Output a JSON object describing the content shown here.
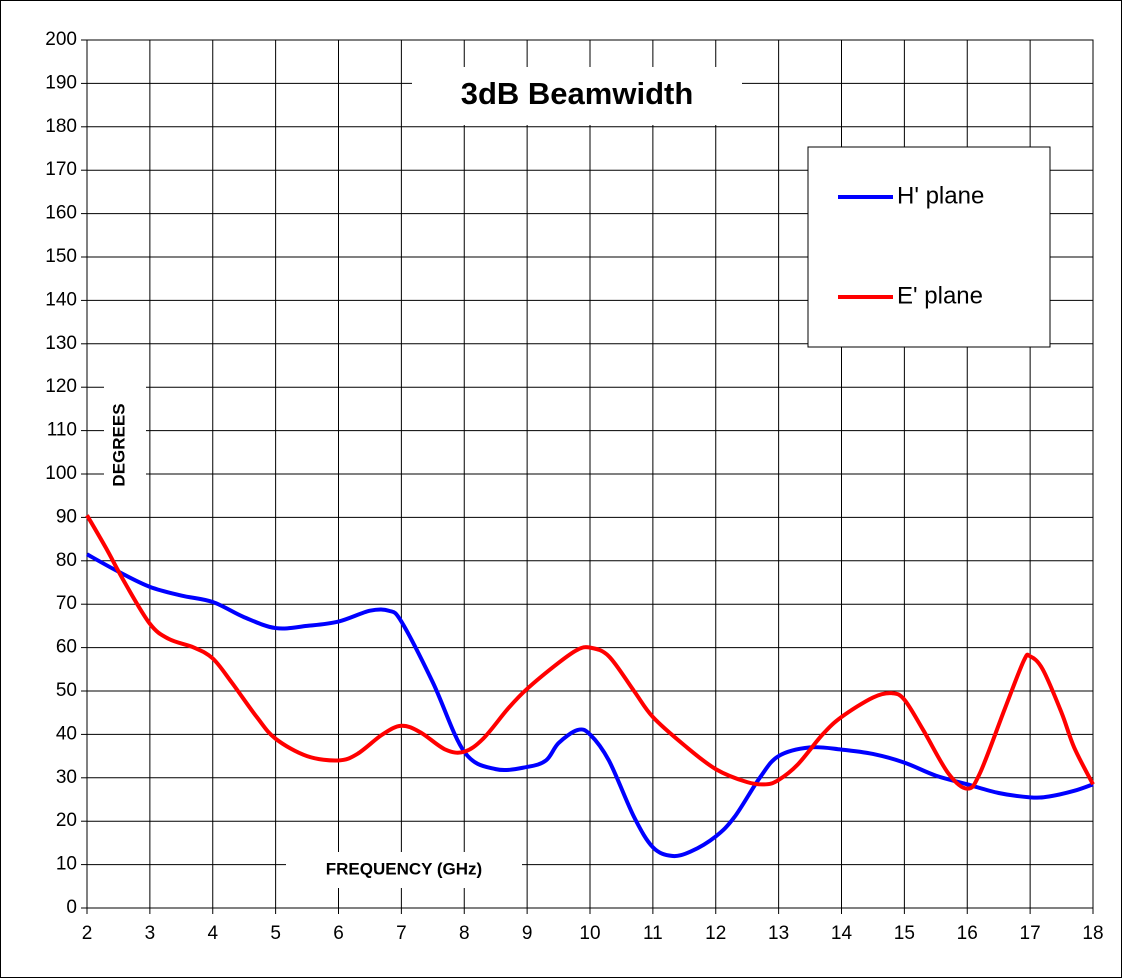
{
  "chart_data": {
    "type": "line",
    "title": "3dB Beamwidth",
    "x_label": "FREQUENCY (GHz)",
    "y_label": "DEGREES",
    "xlim": [
      2,
      18
    ],
    "ylim": [
      0,
      200
    ],
    "xticks": [
      2,
      3,
      4,
      5,
      6,
      7,
      8,
      9,
      10,
      11,
      12,
      13,
      14,
      15,
      16,
      17,
      18
    ],
    "yticks": [
      0,
      10,
      20,
      30,
      40,
      50,
      60,
      70,
      80,
      90,
      100,
      110,
      120,
      130,
      140,
      150,
      160,
      170,
      180,
      190,
      200
    ],
    "grid": true,
    "legend": "upper right",
    "series": [
      {
        "name": "H' plane",
        "color": "#0000ff",
        "x": [
          2,
          2.5,
          3,
          3.5,
          4,
          4.5,
          5,
          5.5,
          6,
          6.5,
          6.8,
          7,
          7.5,
          8,
          8.5,
          9,
          9.3,
          9.5,
          9.8,
          10,
          10.3,
          10.7,
          11,
          11.3,
          11.6,
          12,
          12.3,
          12.7,
          13,
          13.5,
          14,
          14.5,
          15,
          15.5,
          16,
          16.5,
          17,
          17.3,
          17.7,
          18
        ],
        "values": [
          81.5,
          77.5,
          74,
          72,
          70.5,
          67,
          64.5,
          65,
          66,
          68.5,
          68.5,
          66,
          52,
          36,
          32,
          32.5,
          34,
          38,
          41,
          40,
          34,
          21,
          14,
          12,
          13,
          16.5,
          21,
          30,
          35,
          37,
          36.5,
          35.5,
          33.5,
          30.5,
          28.5,
          26.5,
          25.5,
          25.7,
          27,
          28.5
        ]
      },
      {
        "name": "E' plane",
        "color": "#ff0000",
        "x": [
          2,
          2.3,
          2.6,
          3,
          3.3,
          3.7,
          4,
          4.3,
          4.7,
          5,
          5.5,
          6,
          6.3,
          6.7,
          7,
          7.3,
          7.7,
          8,
          8.3,
          8.7,
          9,
          9.5,
          9.8,
          10,
          10.3,
          10.7,
          11,
          11.5,
          12,
          12.5,
          12.8,
          13,
          13.3,
          13.7,
          14,
          14.5,
          14.8,
          15,
          15.3,
          15.7,
          16,
          16.2,
          16.6,
          16.9,
          17,
          17.2,
          17.5,
          17.7,
          18
        ],
        "values": [
          90.5,
          83,
          75,
          65.5,
          62,
          60,
          57.5,
          52,
          44,
          39,
          35,
          34,
          35.5,
          40,
          42,
          40.5,
          36.5,
          36,
          39,
          46,
          50.5,
          56.5,
          59.5,
          60,
          58,
          50,
          44,
          37.5,
          32,
          29,
          28.5,
          29.5,
          33,
          40,
          44,
          48.5,
          49.5,
          48,
          41,
          31,
          27.5,
          31,
          46,
          57,
          58,
          55,
          45,
          37,
          28.5
        ]
      }
    ]
  }
}
